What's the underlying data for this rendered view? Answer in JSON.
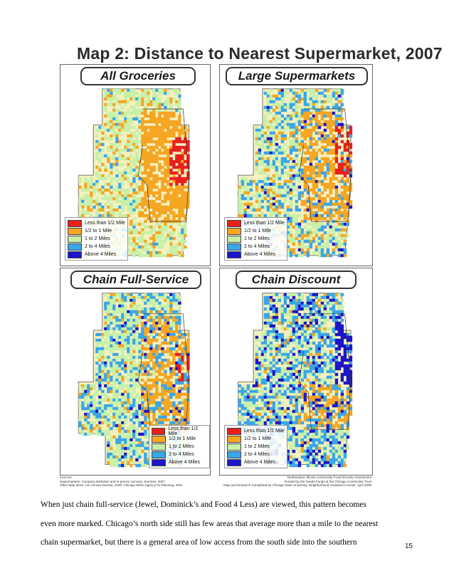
{
  "figure": {
    "title": "Map 2: Distance to Nearest Supermarket, 2007",
    "panels": [
      {
        "id": "groceries",
        "label": "All Groceries",
        "scheme": "groceries"
      },
      {
        "id": "large",
        "label": "Large Supermarkets",
        "scheme": "large"
      },
      {
        "id": "chain-full",
        "label": "Chain Full-Service",
        "scheme": "chainfull"
      },
      {
        "id": "chain-discount",
        "label": "Chain Discount",
        "scheme": "discount"
      }
    ],
    "legend": [
      {
        "label": "Less than 1/2 Mile",
        "color": "#e8201c"
      },
      {
        "label": "1/2 to 1 Mile",
        "color": "#f5a623"
      },
      {
        "label": "1 to 2 Miles",
        "color": "#c8f0a8"
      },
      {
        "label": "2 to 4 Miles",
        "color": "#3aa6e8"
      },
      {
        "label": "Above 4 Miles",
        "color": "#1c16c8"
      }
    ],
    "background_color": "#f5f0c0",
    "sources_left": [
      "Sources:",
      "Supermarkets: Company Websites and In-person Surveys, Summer, 2007",
      "Other Map Items: US Census Bureau, 2000; Chicago Metro Agency for Planning, 2001"
    ],
    "sources_right": [
      "Northeastern Illinois Community Food Security Assessment",
      "Funded by the Searle Funds at the Chicago Community Trust",
      "Map and Research Completed by Chicago State University, Neighborhood Assistance Center, April 2008"
    ]
  },
  "body": {
    "lines": [
      "When just chain full-service (Jewel, Dominick’s and Food 4 Less) are viewed, this pattern becomes",
      "even more marked.  Chicago’s north side still has few areas that average more than a mile to the nearest",
      "chain supermarket, but there is a general area of low access from the south side into the southern"
    ]
  },
  "page_number": "15"
}
